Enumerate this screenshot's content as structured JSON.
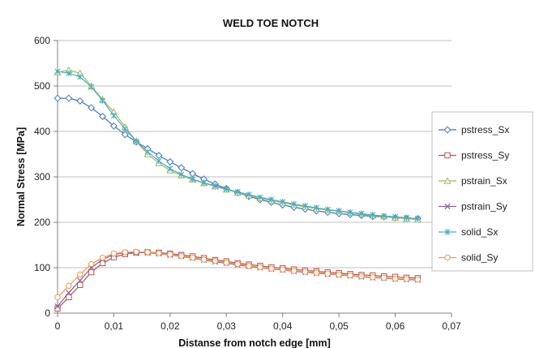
{
  "chart_data": {
    "type": "line",
    "title": "WELD TOE NOTCH",
    "xlabel": "Distanse from notch edge  [mm]",
    "ylabel": "Normal Stress [MPa]",
    "xlim": [
      0,
      0.07
    ],
    "ylim": [
      0,
      600
    ],
    "x_ticks": [
      0,
      0.01,
      0.02,
      0.03,
      0.04,
      0.05,
      0.06,
      0.07
    ],
    "x_tick_labels": [
      "0",
      "0,01",
      "0,02",
      "0,03",
      "0,04",
      "0,05",
      "0,06",
      "0,07"
    ],
    "y_ticks": [
      0,
      100,
      200,
      300,
      400,
      500,
      600
    ],
    "y_tick_labels": [
      "0",
      "100",
      "200",
      "300",
      "400",
      "500",
      "600"
    ],
    "grid": "horizontal",
    "legend_position": "right",
    "x": [
      0,
      0.01,
      0.015,
      0.02,
      0.025,
      0.03,
      0.035,
      0.04,
      0.045,
      0.05,
      0.055,
      0.06,
      0.065
    ],
    "series": [
      {
        "name": "pstress_Sx",
        "color": "#4472C4",
        "marker": "diamond",
        "points": [
          [
            0,
            473
          ],
          [
            0.002,
            473
          ],
          [
            0.004,
            467
          ],
          [
            0.006,
            452
          ],
          [
            0.008,
            433
          ],
          [
            0.01,
            412
          ],
          [
            0.012,
            393
          ],
          [
            0.014,
            377
          ],
          [
            0.016,
            362
          ],
          [
            0.018,
            347
          ],
          [
            0.02,
            333
          ],
          [
            0.022,
            320
          ],
          [
            0.024,
            307
          ],
          [
            0.026,
            295
          ],
          [
            0.028,
            284
          ],
          [
            0.03,
            274
          ],
          [
            0.032,
            265
          ],
          [
            0.034,
            257
          ],
          [
            0.036,
            250
          ],
          [
            0.038,
            244
          ],
          [
            0.04,
            238
          ],
          [
            0.042,
            233
          ],
          [
            0.044,
            229
          ],
          [
            0.046,
            225
          ],
          [
            0.048,
            222
          ],
          [
            0.05,
            219
          ],
          [
            0.052,
            217
          ],
          [
            0.054,
            215
          ],
          [
            0.056,
            213
          ],
          [
            0.058,
            212
          ],
          [
            0.06,
            210
          ],
          [
            0.062,
            209
          ],
          [
            0.064,
            208
          ]
        ]
      },
      {
        "name": "pstress_Sy",
        "color": "#C0504D",
        "marker": "square",
        "points": [
          [
            0,
            10
          ],
          [
            0.002,
            35
          ],
          [
            0.004,
            62
          ],
          [
            0.006,
            90
          ],
          [
            0.008,
            110
          ],
          [
            0.01,
            123
          ],
          [
            0.012,
            130
          ],
          [
            0.014,
            133
          ],
          [
            0.016,
            134
          ],
          [
            0.018,
            133
          ],
          [
            0.02,
            131
          ],
          [
            0.022,
            128
          ],
          [
            0.024,
            125
          ],
          [
            0.026,
            121
          ],
          [
            0.028,
            117
          ],
          [
            0.03,
            114
          ],
          [
            0.032,
            110
          ],
          [
            0.034,
            107
          ],
          [
            0.036,
            104
          ],
          [
            0.038,
            101
          ],
          [
            0.04,
            99
          ],
          [
            0.042,
            96
          ],
          [
            0.044,
            94
          ],
          [
            0.046,
            92
          ],
          [
            0.048,
            90
          ],
          [
            0.05,
            88
          ],
          [
            0.052,
            86
          ],
          [
            0.054,
            84
          ],
          [
            0.056,
            83
          ],
          [
            0.058,
            81
          ],
          [
            0.06,
            80
          ],
          [
            0.062,
            78
          ],
          [
            0.064,
            77
          ]
        ]
      },
      {
        "name": "pstrain_Sx",
        "color": "#9BBB59",
        "marker": "triangle",
        "points": [
          [
            0,
            530
          ],
          [
            0.002,
            535
          ],
          [
            0.004,
            528
          ],
          [
            0.006,
            500
          ],
          [
            0.008,
            470
          ],
          [
            0.01,
            443
          ],
          [
            0.012,
            410
          ],
          [
            0.014,
            378
          ],
          [
            0.016,
            350
          ],
          [
            0.018,
            330
          ],
          [
            0.02,
            314
          ],
          [
            0.022,
            303
          ],
          [
            0.024,
            294
          ],
          [
            0.026,
            286
          ],
          [
            0.028,
            279
          ],
          [
            0.03,
            272
          ],
          [
            0.032,
            265
          ],
          [
            0.034,
            259
          ],
          [
            0.036,
            253
          ],
          [
            0.038,
            248
          ],
          [
            0.04,
            243
          ],
          [
            0.042,
            238
          ],
          [
            0.044,
            234
          ],
          [
            0.046,
            230
          ],
          [
            0.048,
            227
          ],
          [
            0.05,
            224
          ],
          [
            0.052,
            221
          ],
          [
            0.054,
            218
          ],
          [
            0.056,
            215
          ],
          [
            0.058,
            213
          ],
          [
            0.06,
            210
          ],
          [
            0.062,
            208
          ],
          [
            0.064,
            206
          ]
        ]
      },
      {
        "name": "pstrain_Sy",
        "color": "#8064A2",
        "marker": "x",
        "points": [
          [
            0,
            15
          ],
          [
            0.002,
            45
          ],
          [
            0.004,
            72
          ],
          [
            0.006,
            100
          ],
          [
            0.008,
            118
          ],
          [
            0.01,
            129
          ],
          [
            0.012,
            133
          ],
          [
            0.014,
            134
          ],
          [
            0.016,
            133
          ],
          [
            0.018,
            131
          ],
          [
            0.02,
            128
          ],
          [
            0.022,
            125
          ],
          [
            0.024,
            121
          ],
          [
            0.026,
            117
          ],
          [
            0.028,
            113
          ],
          [
            0.03,
            110
          ],
          [
            0.032,
            106
          ],
          [
            0.034,
            103
          ],
          [
            0.036,
            100
          ],
          [
            0.038,
            97
          ],
          [
            0.04,
            95
          ],
          [
            0.042,
            92
          ],
          [
            0.044,
            90
          ],
          [
            0.046,
            88
          ],
          [
            0.048,
            86
          ],
          [
            0.05,
            84
          ],
          [
            0.052,
            82
          ],
          [
            0.054,
            80
          ],
          [
            0.056,
            78
          ],
          [
            0.058,
            77
          ],
          [
            0.06,
            75
          ],
          [
            0.062,
            74
          ],
          [
            0.064,
            73
          ]
        ]
      },
      {
        "name": "solid_Sx",
        "color": "#4BACC6",
        "marker": "asterisk",
        "points": [
          [
            0,
            532
          ],
          [
            0.002,
            528
          ],
          [
            0.004,
            520
          ],
          [
            0.006,
            498
          ],
          [
            0.008,
            468
          ],
          [
            0.01,
            435
          ],
          [
            0.012,
            405
          ],
          [
            0.014,
            378
          ],
          [
            0.016,
            355
          ],
          [
            0.018,
            335
          ],
          [
            0.02,
            318
          ],
          [
            0.022,
            305
          ],
          [
            0.024,
            295
          ],
          [
            0.026,
            287
          ],
          [
            0.028,
            280
          ],
          [
            0.03,
            273
          ],
          [
            0.032,
            267
          ],
          [
            0.034,
            261
          ],
          [
            0.036,
            255
          ],
          [
            0.038,
            250
          ],
          [
            0.04,
            245
          ],
          [
            0.042,
            240
          ],
          [
            0.044,
            236
          ],
          [
            0.046,
            232
          ],
          [
            0.048,
            228
          ],
          [
            0.05,
            225
          ],
          [
            0.052,
            222
          ],
          [
            0.054,
            219
          ],
          [
            0.056,
            216
          ],
          [
            0.058,
            214
          ],
          [
            0.06,
            212
          ],
          [
            0.062,
            210
          ],
          [
            0.064,
            208
          ]
        ]
      },
      {
        "name": "solid_Sy",
        "color": "#F79646",
        "marker": "circle",
        "points": [
          [
            0,
            35
          ],
          [
            0.002,
            60
          ],
          [
            0.004,
            85
          ],
          [
            0.006,
            108
          ],
          [
            0.008,
            122
          ],
          [
            0.01,
            131
          ],
          [
            0.012,
            134
          ],
          [
            0.014,
            135
          ],
          [
            0.016,
            134
          ],
          [
            0.018,
            132
          ],
          [
            0.02,
            129
          ],
          [
            0.022,
            126
          ],
          [
            0.024,
            122
          ],
          [
            0.026,
            118
          ],
          [
            0.028,
            115
          ],
          [
            0.03,
            111
          ],
          [
            0.032,
            108
          ],
          [
            0.034,
            104
          ],
          [
            0.036,
            101
          ],
          [
            0.038,
            98
          ],
          [
            0.04,
            96
          ],
          [
            0.042,
            93
          ],
          [
            0.044,
            91
          ],
          [
            0.046,
            89
          ],
          [
            0.048,
            87
          ],
          [
            0.05,
            85
          ],
          [
            0.052,
            83
          ],
          [
            0.054,
            81
          ],
          [
            0.056,
            79
          ],
          [
            0.058,
            78
          ],
          [
            0.06,
            76
          ],
          [
            0.062,
            75
          ],
          [
            0.064,
            74
          ]
        ]
      }
    ]
  }
}
